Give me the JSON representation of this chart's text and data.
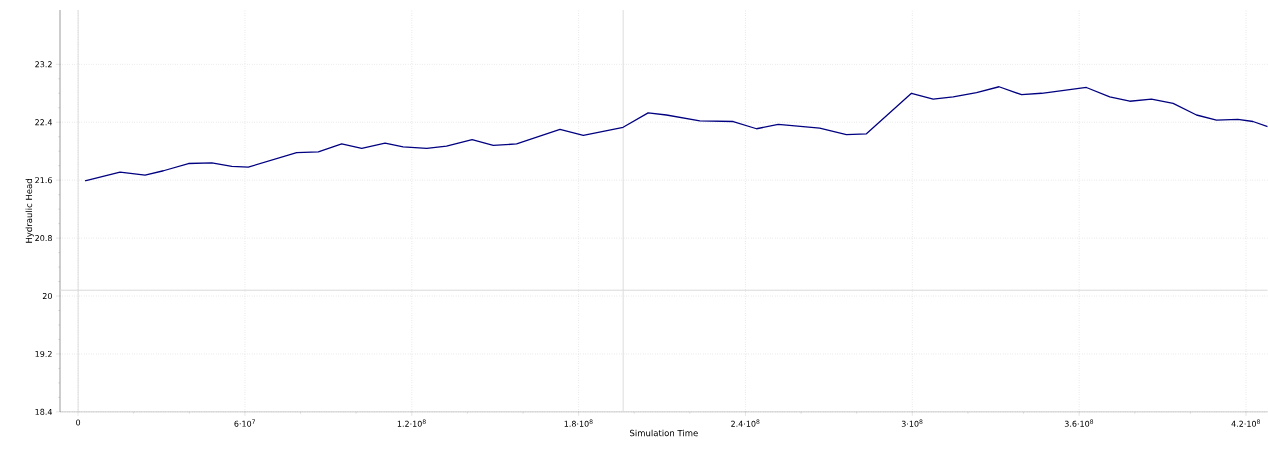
{
  "chart_data": {
    "type": "line",
    "xlabel": "Simulation Time",
    "ylabel": "Hydraulic Head",
    "x": [
      2500000.0,
      15100000.0,
      24100000.0,
      30700000.0,
      39700000.0,
      48100000.0,
      55300000.0,
      61200000.0,
      78600000.0,
      86400000.0,
      94800000.0,
      102000000.0,
      110400000.0,
      116900000.0,
      125400000.0,
      132500000.0,
      141700000.0,
      149300000.0,
      157700000.0,
      173300000.0,
      181700000.0,
      196000000.0,
      205000000.0,
      211600000.0,
      223600000.0,
      235600000.0,
      244000000.0,
      251800000.0,
      266700000.0,
      276300000.0,
      283500000.0,
      299700000.0,
      307500000.0,
      314700000.0,
      323100000.0,
      331200000.0,
      339300000.0,
      346500000.0,
      362600000.0,
      371000000.0,
      378200000.0,
      386000000.0,
      393800000.0,
      402200000.0,
      409400000.0,
      417100000.0,
      422500000.0,
      427800000.0
    ],
    "series": [
      {
        "color": "#000080",
        "values": [
          21.59,
          21.71,
          21.67,
          21.73,
          21.83,
          21.84,
          21.79,
          21.78,
          21.98,
          21.99,
          22.1,
          22.04,
          22.11,
          22.06,
          22.04,
          22.07,
          22.16,
          22.08,
          22.1,
          22.3,
          22.22,
          22.33,
          22.53,
          22.5,
          22.42,
          22.41,
          22.31,
          22.37,
          22.32,
          22.23,
          22.24,
          22.8,
          22.72,
          22.75,
          22.81,
          22.89,
          22.78,
          22.8,
          22.88,
          22.75,
          22.69,
          22.72,
          22.66,
          22.5,
          22.43,
          22.44,
          22.41,
          22.34
        ]
      }
    ],
    "xlim": [
      -6500000.0,
      427800000.0
    ],
    "ylim": [
      18.4,
      23.95
    ],
    "xticks": [
      0,
      {
        "value": 60000000.0,
        "label": "6·10$^{7}$"
      },
      {
        "value": 120000000.0,
        "label": "1.2·10$^{8}$"
      },
      {
        "value": 180000000.0,
        "label": "1.8·10$^{8}$"
      },
      {
        "value": 240000000.0,
        "label": "2.4·10$^{8}$"
      },
      {
        "value": 300000000.0,
        "label": "3·10$^{8}$"
      },
      {
        "value": 360000000.0,
        "label": "3.6·10$^{8}$"
      },
      {
        "value": 420000000.0,
        "label": "4.2·10$^{8}$"
      }
    ],
    "yticks": [
      18.4,
      19.2,
      20,
      20.8,
      21.6,
      22.4,
      23.2
    ],
    "ref_lines": [
      {
        "axis": "x",
        "value": 0,
        "color": "#d9d9d9"
      },
      {
        "axis": "x",
        "value": 196000000.0,
        "color": "#d9d9d9"
      },
      {
        "axis": "y",
        "value": 20.08,
        "color": "#d9d9d9"
      }
    ],
    "grid": true,
    "marker": "none",
    "line_style": "solid"
  }
}
